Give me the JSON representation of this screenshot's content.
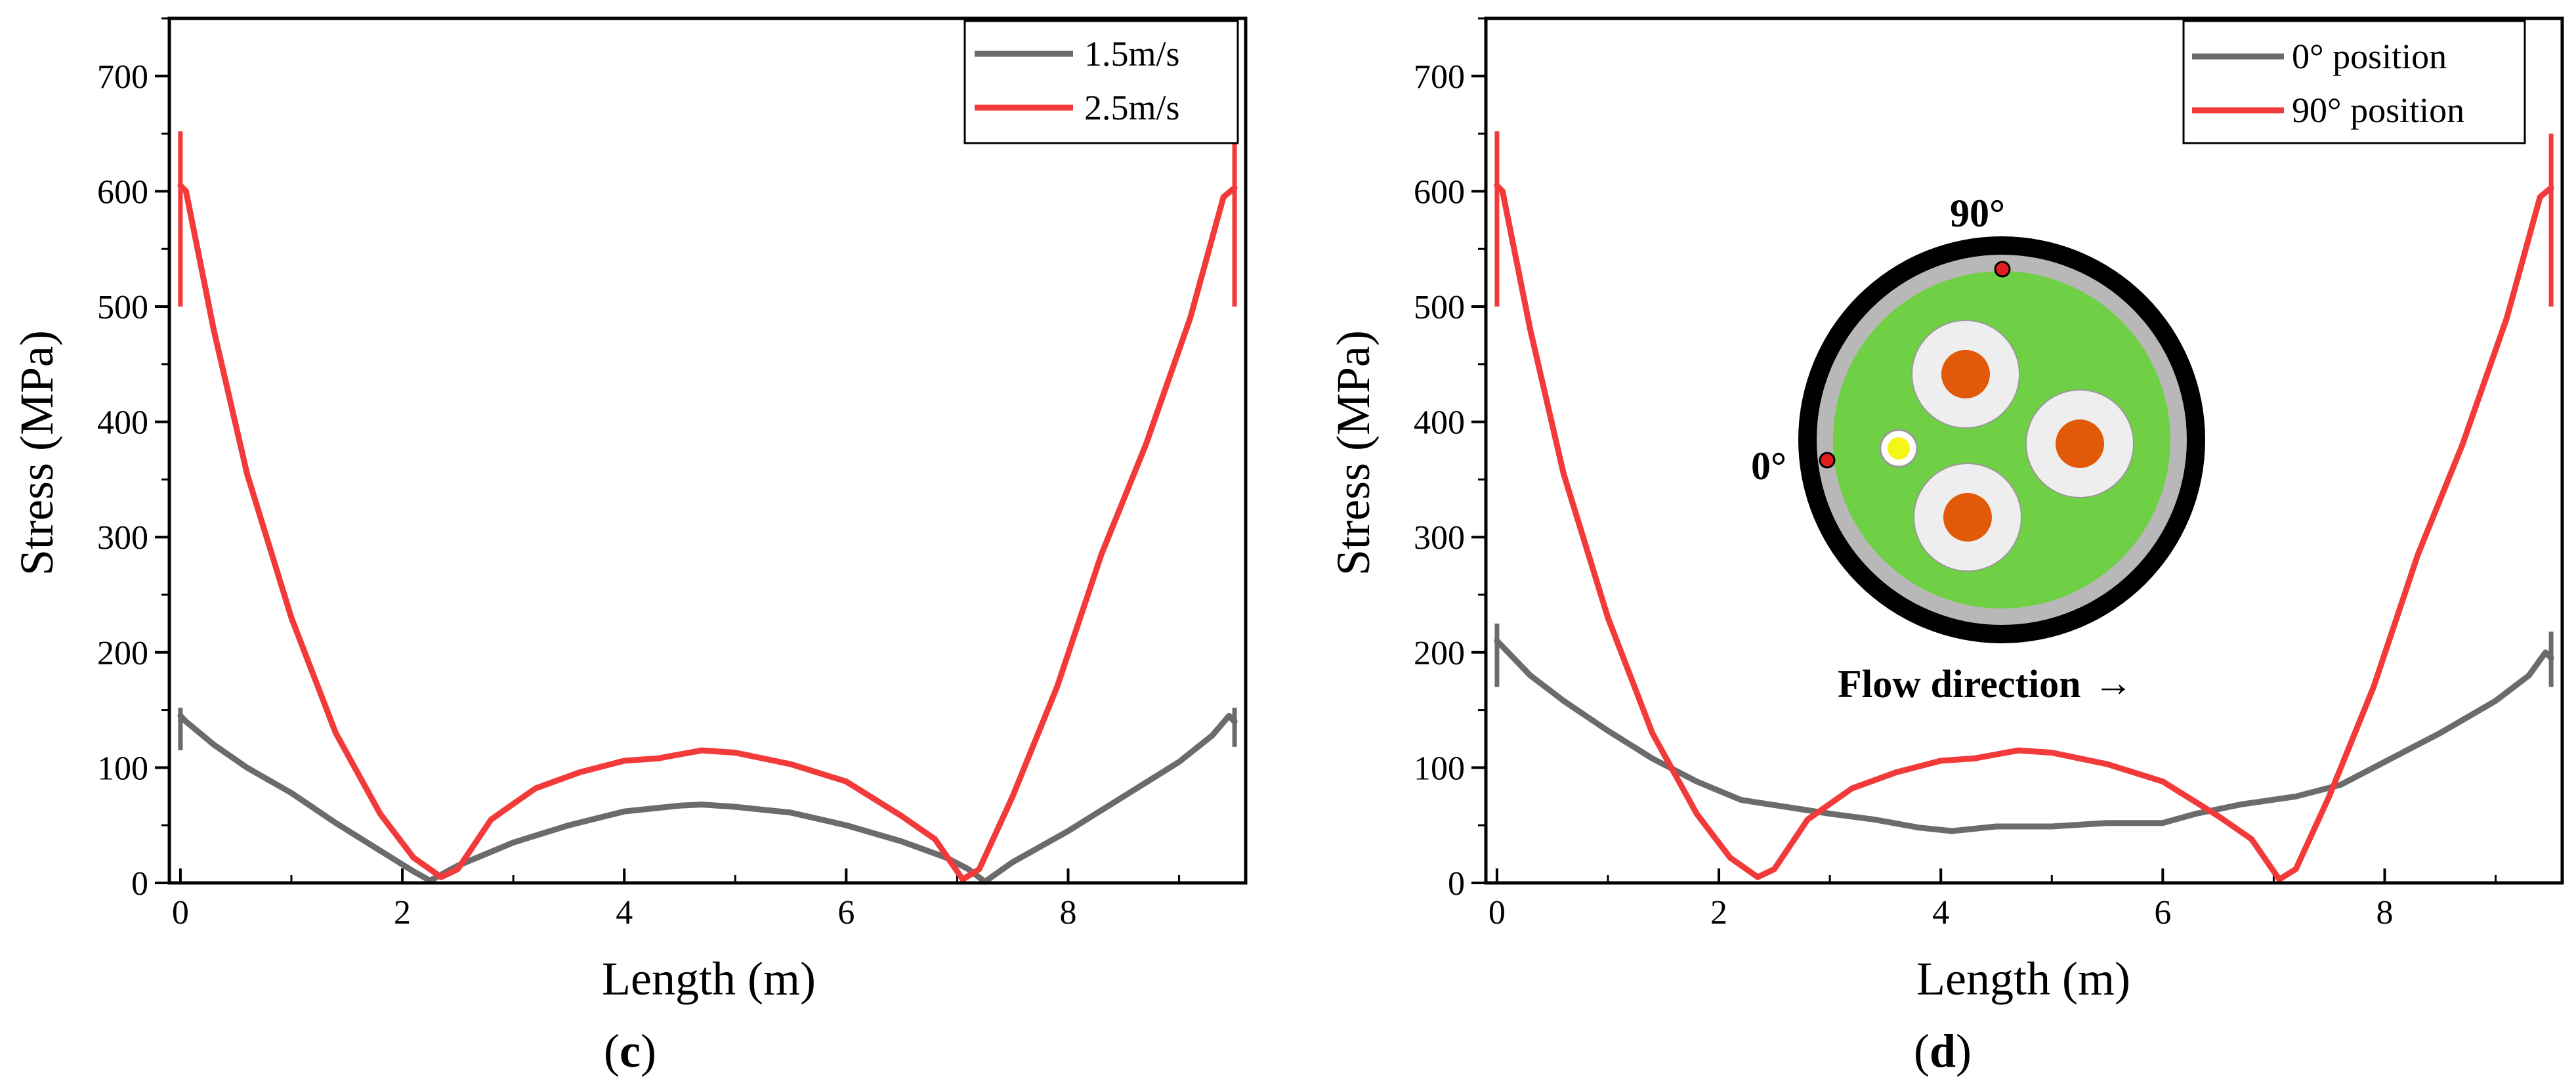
{
  "colors": {
    "gray_series": "#6b6b6b",
    "red_series": "#f23a3a",
    "cable_outer": "#000000",
    "cable_sheath": "#b8b8b8",
    "cable_filler": "#6fcf45",
    "core_insulation": "#eeeeee",
    "core_conductor": "#e05a0a",
    "fiber_core": "#f5f51a",
    "marker": "#e02020"
  },
  "chart_data": [
    {
      "type": "line",
      "panel": "c",
      "caption_open": "(",
      "caption_letter": "c",
      "caption_close": ")",
      "xlabel": "Length (m)",
      "ylabel": "Stress (MPa)",
      "xlim": [
        -0.1,
        9.6
      ],
      "ylim": [
        0,
        750
      ],
      "xticks": [
        0,
        2,
        4,
        6,
        8
      ],
      "yticks": [
        0,
        100,
        200,
        300,
        400,
        500,
        600,
        700
      ],
      "legend_position": "top-right",
      "series": [
        {
          "name": "1.5m/s",
          "color_key": "gray_series",
          "x": [
            0,
            0.05,
            0.3,
            0.6,
            1.0,
            1.4,
            1.8,
            2.1,
            2.25,
            2.5,
            3.0,
            3.5,
            4.0,
            4.5,
            4.7,
            5.0,
            5.5,
            6.0,
            6.5,
            6.9,
            7.1,
            7.25,
            7.5,
            8.0,
            8.5,
            9.0,
            9.3,
            9.45,
            9.5
          ],
          "y": [
            145,
            140,
            120,
            100,
            78,
            52,
            28,
            10,
            2,
            15,
            35,
            50,
            62,
            67,
            68,
            66,
            61,
            50,
            36,
            22,
            12,
            1,
            18,
            45,
            75,
            105,
            128,
            145,
            140
          ],
          "spikes": [
            {
              "x": 0,
              "y_low": 115,
              "y_high": 152
            },
            {
              "x": 9.5,
              "y_low": 118,
              "y_high": 152
            }
          ]
        },
        {
          "name": "2.5m/s",
          "color_key": "red_series",
          "x": [
            0,
            0.05,
            0.3,
            0.6,
            1.0,
            1.4,
            1.8,
            2.1,
            2.35,
            2.5,
            2.8,
            3.2,
            3.6,
            4.0,
            4.3,
            4.7,
            5.0,
            5.5,
            6.0,
            6.5,
            6.8,
            7.05,
            7.2,
            7.5,
            7.9,
            8.3,
            8.7,
            9.1,
            9.4,
            9.5
          ],
          "y": [
            605,
            600,
            480,
            355,
            230,
            130,
            60,
            22,
            5,
            12,
            55,
            82,
            96,
            106,
            108,
            115,
            113,
            103,
            88,
            58,
            38,
            3,
            12,
            75,
            170,
            285,
            380,
            490,
            595,
            603
          ],
          "spikes": [
            {
              "x": 0,
              "y_low": 500,
              "y_high": 652
            },
            {
              "x": 9.5,
              "y_low": 500,
              "y_high": 650
            }
          ]
        }
      ]
    },
    {
      "type": "line",
      "panel": "d",
      "caption_open": "(",
      "caption_letter": "d",
      "caption_close": ")",
      "xlabel": "Length (m)",
      "ylabel": "Stress (MPa)",
      "xlim": [
        -0.1,
        9.6
      ],
      "ylim": [
        0,
        750
      ],
      "xticks": [
        0,
        2,
        4,
        6,
        8
      ],
      "yticks": [
        0,
        100,
        200,
        300,
        400,
        500,
        600,
        700
      ],
      "legend_position": "top-right",
      "series": [
        {
          "name": "0° position",
          "color_key": "gray_series",
          "x": [
            0,
            0.05,
            0.3,
            0.6,
            1.0,
            1.4,
            1.8,
            2.2,
            2.6,
            3.0,
            3.4,
            3.8,
            4.1,
            4.3,
            4.5,
            5.0,
            5.5,
            6.0,
            6.3,
            6.7,
            7.2,
            7.6,
            8.0,
            8.5,
            9.0,
            9.3,
            9.45,
            9.5
          ],
          "y": [
            210,
            205,
            180,
            158,
            132,
            108,
            88,
            72,
            66,
            60,
            55,
            48,
            45,
            47,
            49,
            49,
            52,
            52,
            60,
            68,
            75,
            85,
            105,
            130,
            158,
            180,
            200,
            195
          ],
          "spikes": [
            {
              "x": 0,
              "y_low": 170,
              "y_high": 225
            },
            {
              "x": 9.5,
              "y_low": 170,
              "y_high": 218
            }
          ]
        },
        {
          "name": "90° position",
          "color_key": "red_series",
          "x": [
            0,
            0.05,
            0.3,
            0.6,
            1.0,
            1.4,
            1.8,
            2.1,
            2.35,
            2.5,
            2.8,
            3.2,
            3.6,
            4.0,
            4.3,
            4.7,
            5.0,
            5.5,
            6.0,
            6.5,
            6.8,
            7.05,
            7.2,
            7.5,
            7.9,
            8.3,
            8.7,
            9.1,
            9.4,
            9.5
          ],
          "y": [
            605,
            600,
            480,
            355,
            230,
            130,
            60,
            22,
            5,
            12,
            55,
            82,
            96,
            106,
            108,
            115,
            113,
            103,
            88,
            58,
            38,
            3,
            12,
            75,
            170,
            285,
            380,
            490,
            595,
            603
          ],
          "spikes": [
            {
              "x": 0,
              "y_low": 500,
              "y_high": 652
            },
            {
              "x": 9.5,
              "y_low": 500,
              "y_high": 650
            }
          ]
        }
      ],
      "inset": {
        "description_type": "cable-cross-section",
        "label_top": "90°",
        "label_left": "0°",
        "flow_label": "Flow direction",
        "flow_arrow": "→"
      }
    }
  ]
}
